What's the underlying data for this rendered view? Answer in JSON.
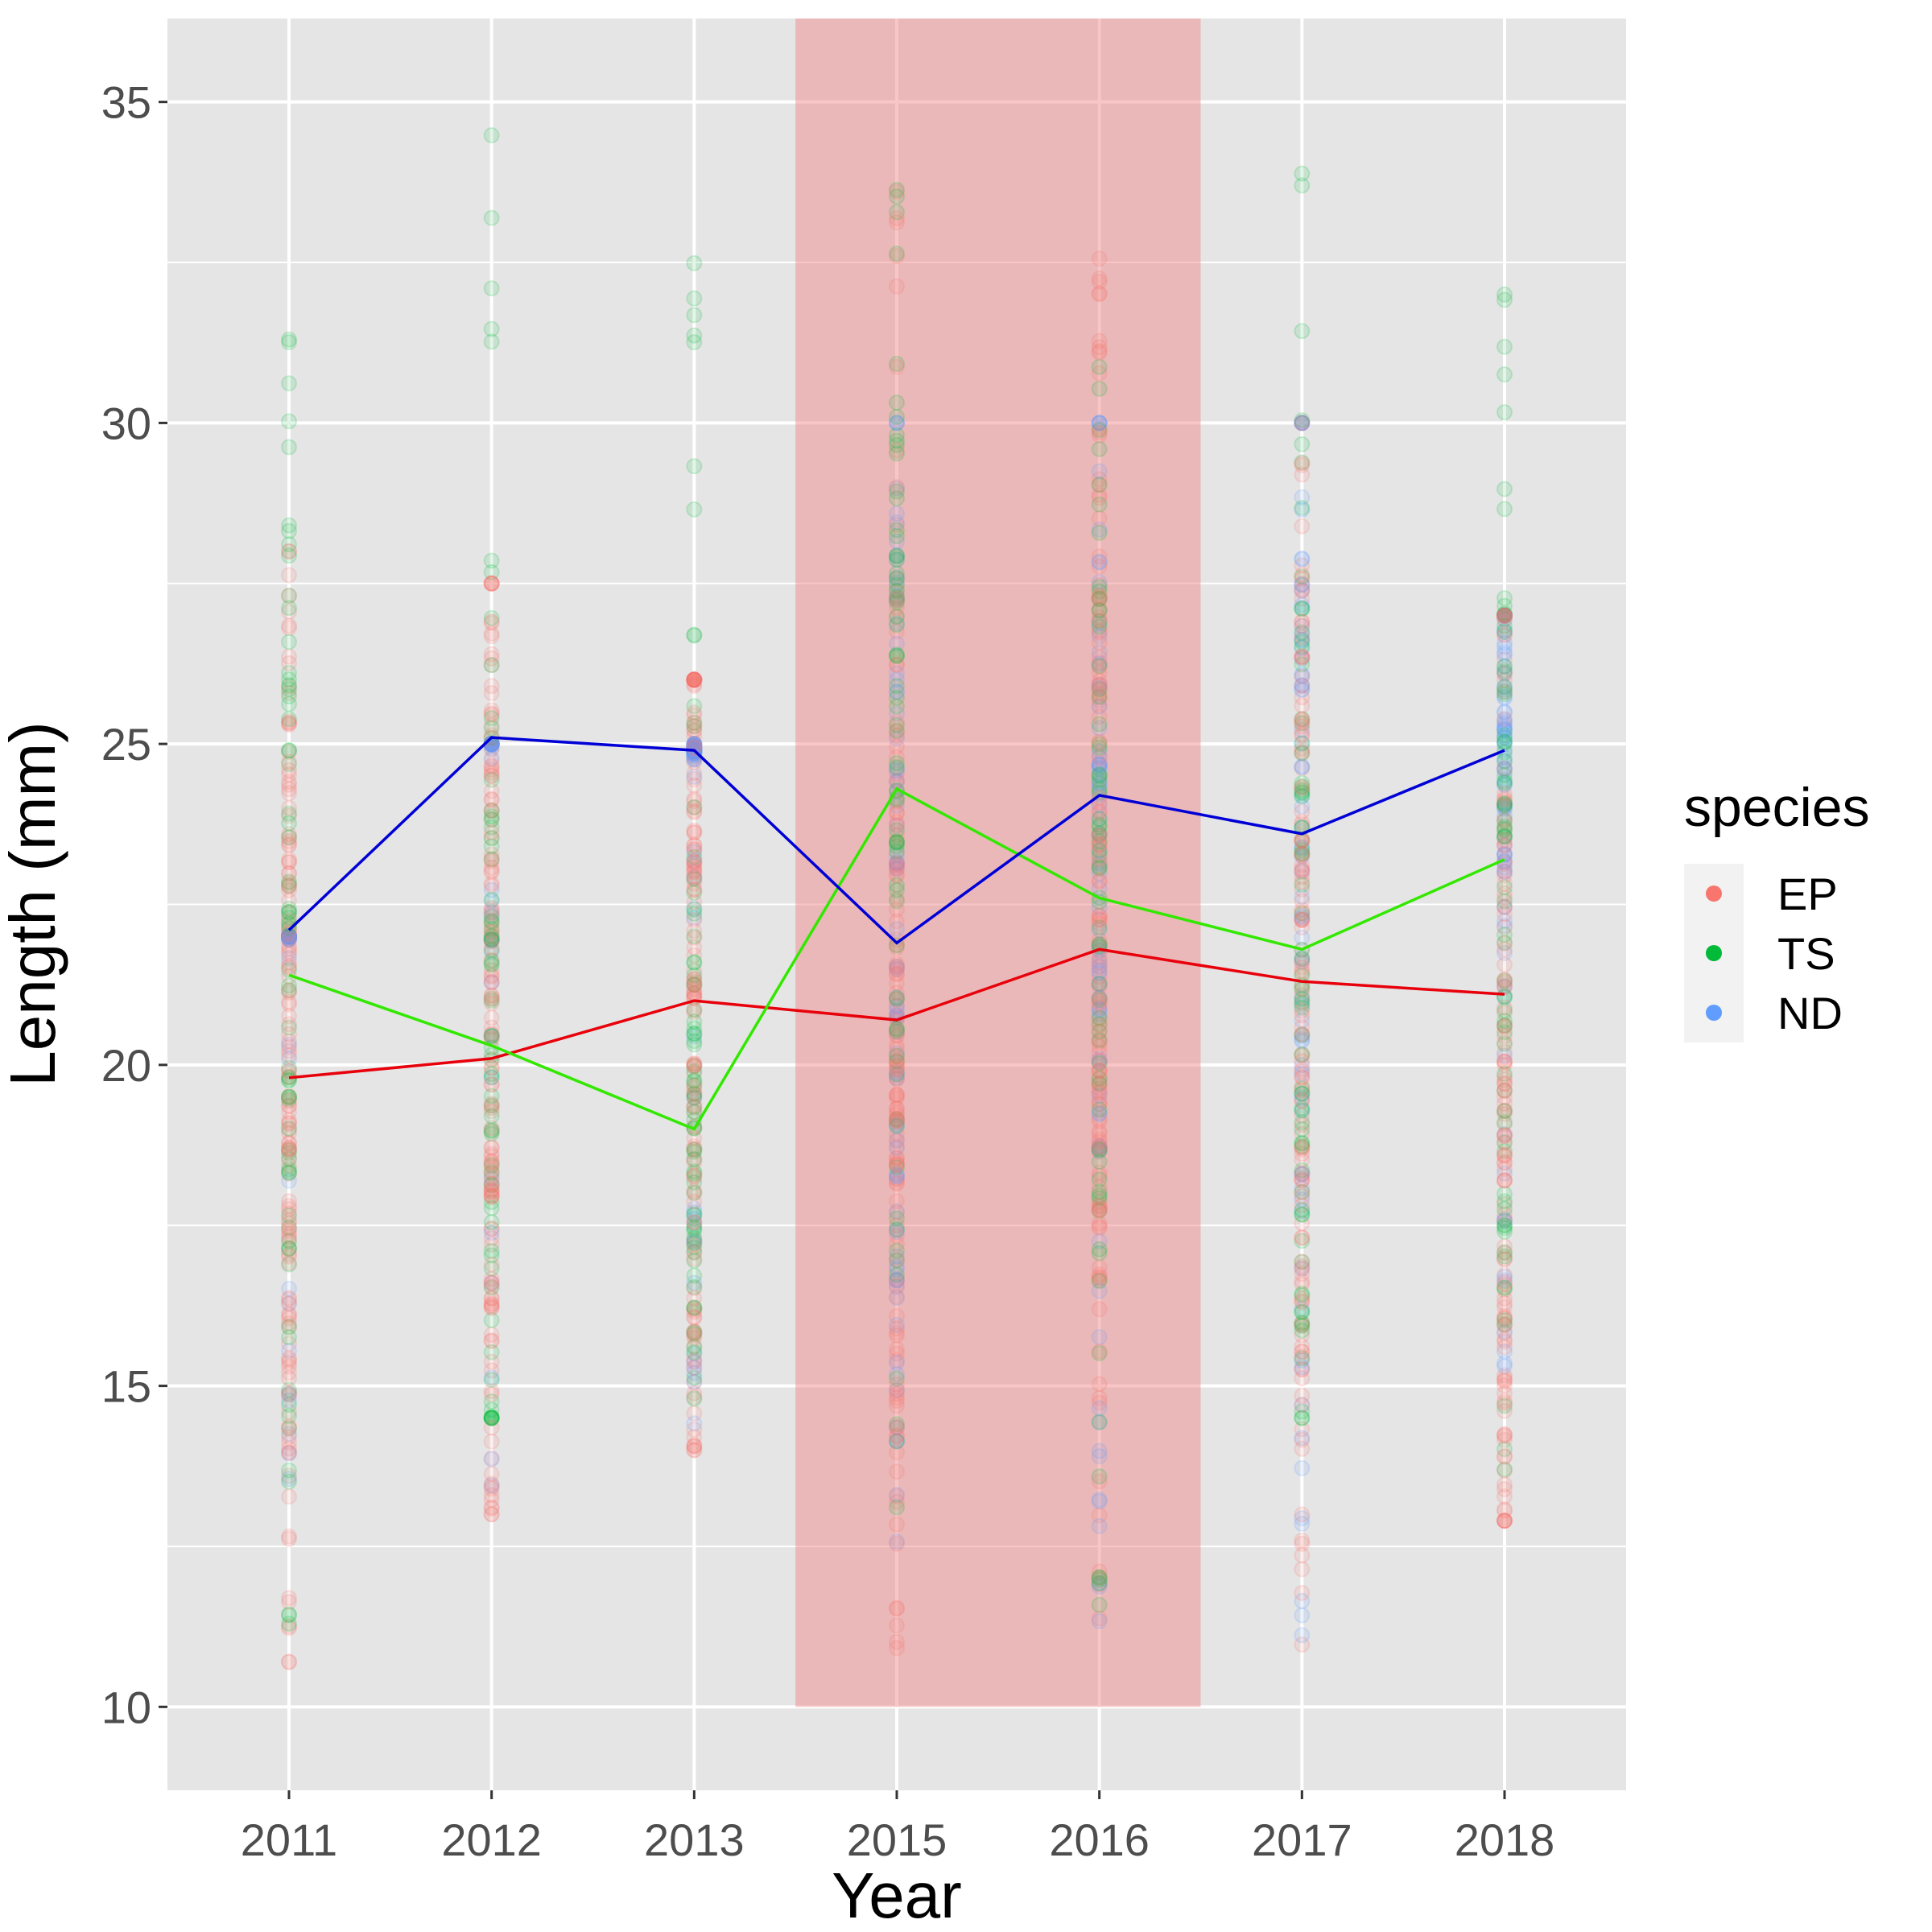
{
  "chart_data": {
    "type": "scatter",
    "title": "",
    "xlabel": "Year",
    "ylabel": "Length (mm)",
    "categories": [
      "2011",
      "2012",
      "2013",
      "2015",
      "2016",
      "2017",
      "2018"
    ],
    "ylim": [
      8.7,
      36.3
    ],
    "yticks": [
      10,
      15,
      20,
      25,
      30,
      35
    ],
    "grid": true,
    "legend": {
      "title": "species",
      "position": "right"
    },
    "highlight_band": {
      "from": "2015",
      "to": "2016",
      "ymin": 10,
      "ymax": 36.3,
      "color": "#f08080"
    },
    "point_ranges": [
      {
        "name": "EP",
        "min": [
          10.7,
          13.0,
          14.0,
          10.1,
          10.8,
          10.4,
          12.9
        ],
        "max": [
          28.0,
          27.5,
          26.0,
          34.8,
          33.4,
          30.0,
          27.0
        ]
      },
      {
        "name": "TS",
        "min": [
          11.2,
          14.5,
          14.8,
          10.2,
          10.2,
          14.5,
          13.7
        ],
        "max": [
          31.3,
          34.7,
          33.2,
          34.2,
          31.1,
          34.2,
          32.0
        ]
      },
      {
        "name": "ND",
        "min": [
          12.8,
          13.0,
          14.0,
          12.0,
          10.5,
          10.6,
          15.0
        ],
        "max": [
          22.0,
          25.0,
          25.0,
          30.0,
          30.0,
          30.0,
          27.0
        ]
      }
    ],
    "series": [
      {
        "name": "EP",
        "color": "#f8766d",
        "line_color": "#e8000b",
        "values": [
          19.8,
          20.1,
          21.0,
          20.7,
          21.8,
          21.3,
          21.1
        ]
      },
      {
        "name": "TS",
        "color": "#00ba38",
        "line_color": "#33e800",
        "values": [
          21.4,
          20.3,
          19.0,
          24.3,
          22.6,
          21.8,
          23.2
        ]
      },
      {
        "name": "ND",
        "color": "#619cff",
        "line_color": "#0000d6",
        "values": [
          22.1,
          25.1,
          24.9,
          21.9,
          24.2,
          23.6,
          24.9
        ]
      }
    ]
  }
}
